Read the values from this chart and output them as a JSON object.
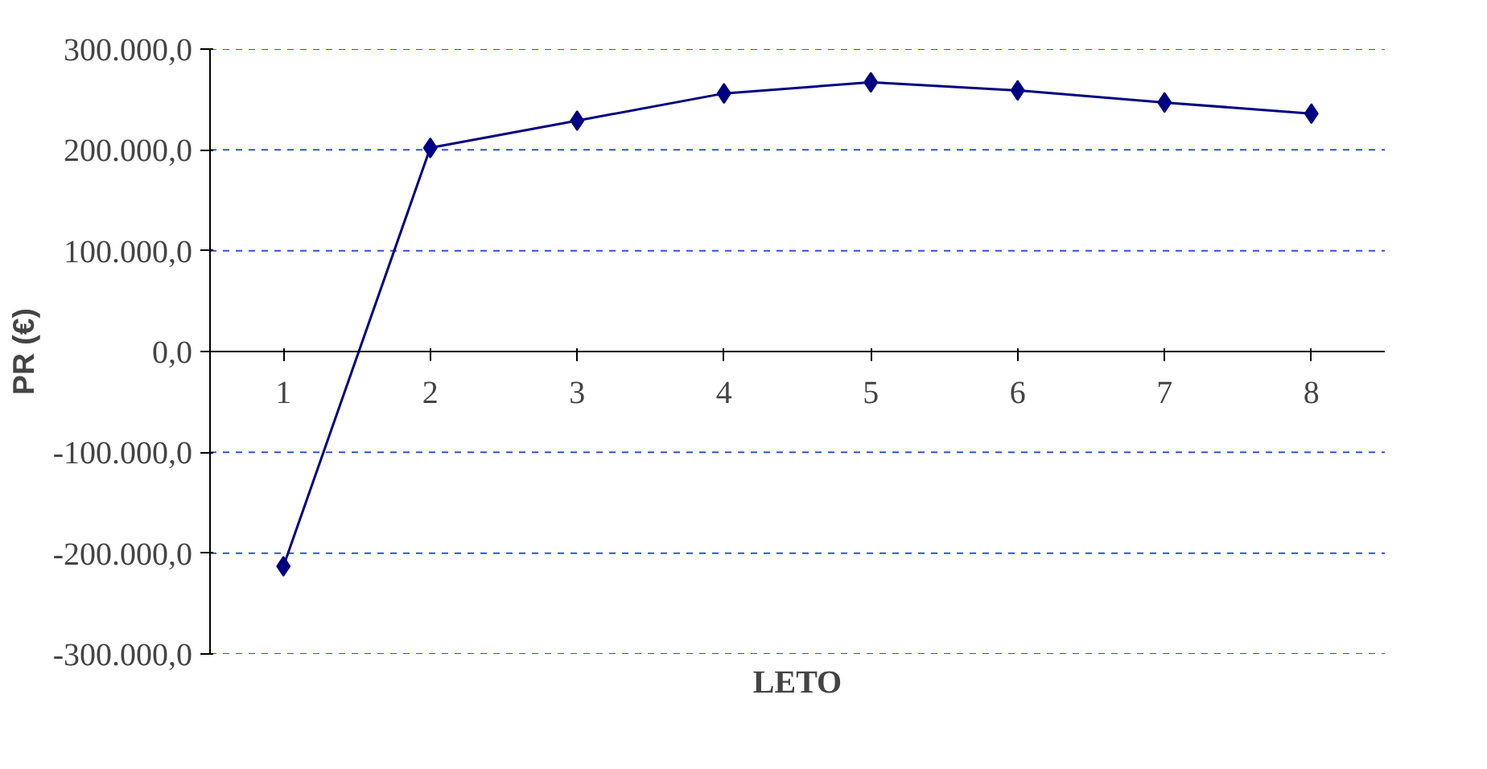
{
  "chart_data": {
    "type": "line",
    "xlabel": "LETO",
    "ylabel": "PR (€)",
    "categories": [
      "1",
      "2",
      "3",
      "4",
      "5",
      "6",
      "7",
      "8"
    ],
    "series": [
      {
        "color": "#000080",
        "values": [
          -213000,
          202000,
          229000,
          256000,
          267000,
          259000,
          247000,
          236000
        ]
      }
    ],
    "ylim": [
      -300000,
      300000
    ],
    "yticks": [
      {
        "value": -300000,
        "label": "-300.000,0"
      },
      {
        "value": -200000,
        "label": "-200.000,0"
      },
      {
        "value": -100000,
        "label": "-100.000,0"
      },
      {
        "value": 0,
        "label": "0,0"
      },
      {
        "value": 100000,
        "label": "100.000,0"
      },
      {
        "value": 200000,
        "label": "200.000,0"
      },
      {
        "value": 300000,
        "label": "300.000,0"
      }
    ],
    "grid": "y",
    "marker": "diamond",
    "line_style": "solid"
  }
}
